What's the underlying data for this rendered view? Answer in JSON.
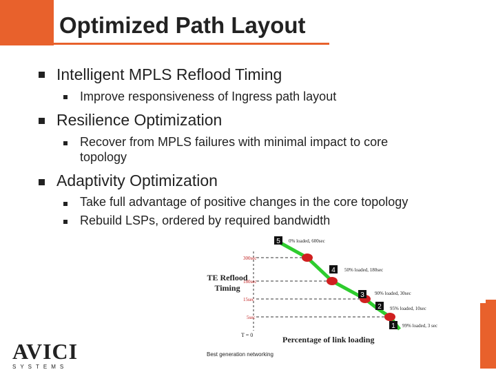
{
  "title": "Optimized Path Layout",
  "bullets": [
    {
      "text": "Intelligent MPLS Reflood Timing",
      "sub": [
        "Improve responsiveness of Ingress path layout"
      ]
    },
    {
      "text": "Resilience Optimization",
      "sub": [
        "Recover from MPLS failures with minimal impact to core",
        "topology"
      ]
    },
    {
      "text": "Adaptivity Optimization",
      "sub": [
        "Take full advantage of positive changes in the core topology",
        "Rebuild LSPs, ordered by required bandwidth"
      ]
    }
  ],
  "chart": {
    "y_axis_label": "TE Reflood Timing",
    "x_axis_label": "Percentage of link loading",
    "origin_label": "T = 0",
    "ticks": [
      "300sec",
      "180sec",
      "15sec",
      "5sec"
    ],
    "points": [
      {
        "num": "5",
        "label": "0% loaded, 600sec"
      },
      {
        "num": "4",
        "label": "50% loaded, 180sec"
      },
      {
        "num": "3",
        "label": "90% loaded, 30sec"
      },
      {
        "num": "2",
        "label": "95% loaded, 10sec"
      },
      {
        "num": "1",
        "label": "99% loaded, 3 sec"
      }
    ],
    "line_color": "#2ecc2e",
    "node_color": "#d02020"
  },
  "logo": {
    "word": "AVICI",
    "sub": "SYSTEMS"
  },
  "tagline": "Best generation networking"
}
